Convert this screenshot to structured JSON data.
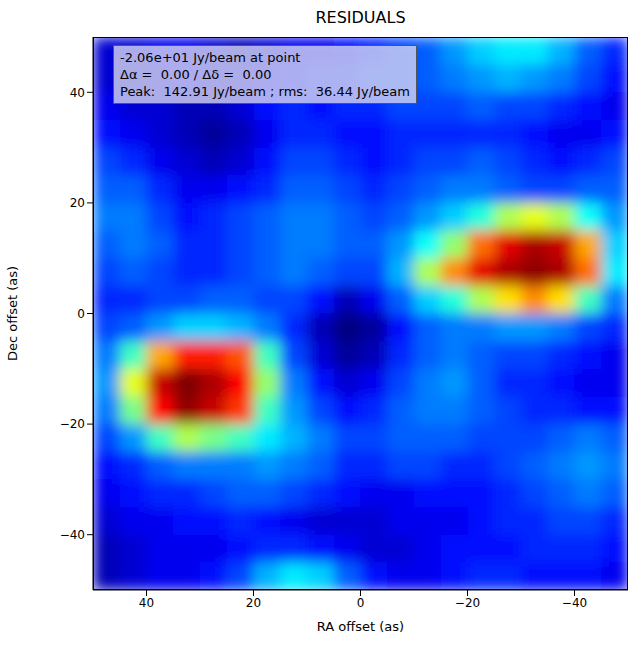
{
  "chart_data": {
    "type": "heatmap",
    "title": "RESIDUALS",
    "x_label": "RA offset (as)",
    "y_label": "Dec offset (as)",
    "annotation": [
      "-2.06e+01 Jy/beam at point",
      "Δα =  0.00 / Δδ =  0.00",
      "Peak:  142.91 Jy/beam ; rms:  36.44 Jy/beam"
    ],
    "xlim": [
      50,
      -50
    ],
    "ylim": [
      -50,
      50
    ],
    "xticks": [
      40,
      20,
      0,
      {
        "value": -20,
        "label": "−20"
      },
      {
        "value": -40,
        "label": "−40"
      }
    ],
    "yticks": [
      {
        "value": -40,
        "label": "−40"
      },
      {
        "value": -20,
        "label": "−20"
      },
      0,
      20,
      40
    ],
    "grid": false,
    "x": [
      47.5,
      42.5,
      37.5,
      32.5,
      27.5,
      22.5,
      17.5,
      12.5,
      7.5,
      2.5,
      -2.5,
      -7.5,
      -12.5,
      -17.5,
      -22.5,
      -27.5,
      -32.5,
      -37.5,
      -42.5,
      -47.5
    ],
    "y": [
      47.5,
      42.5,
      37.5,
      32.5,
      27.5,
      22.5,
      17.5,
      12.5,
      7.5,
      2.5,
      -2.5,
      -7.5,
      -12.5,
      -17.5,
      -22.5,
      -27.5,
      -32.5,
      -37.5,
      -42.5,
      -47.5
    ],
    "cells": [
      [
        -25,
        -25,
        -20,
        -20,
        -25,
        -30,
        -25,
        -20,
        -20,
        -15,
        -10,
        -5,
        0,
        10,
        20,
        25,
        25,
        15,
        0,
        -10
      ],
      [
        -25,
        -30,
        -25,
        -20,
        -25,
        -25,
        -20,
        -15,
        -10,
        -10,
        -5,
        -5,
        0,
        5,
        10,
        15,
        10,
        5,
        -5,
        -15
      ],
      [
        -20,
        -25,
        -25,
        -30,
        -30,
        -25,
        -15,
        -10,
        -15,
        -10,
        -10,
        -5,
        -5,
        -5,
        0,
        -5,
        -5,
        -10,
        -15,
        -20
      ],
      [
        -15,
        -20,
        -25,
        -30,
        -35,
        -30,
        -20,
        -10,
        -10,
        -15,
        -15,
        -10,
        -10,
        -10,
        -10,
        -10,
        -15,
        -20,
        -20,
        -15
      ],
      [
        -5,
        -10,
        -20,
        -25,
        -30,
        -25,
        -15,
        -5,
        -5,
        -10,
        -15,
        -10,
        -5,
        -5,
        0,
        -5,
        -10,
        -15,
        -10,
        -5
      ],
      [
        0,
        0,
        -10,
        -20,
        -20,
        -15,
        -10,
        0,
        0,
        -5,
        -10,
        -5,
        0,
        5,
        5,
        0,
        -5,
        -5,
        0,
        0
      ],
      [
        5,
        5,
        -5,
        -15,
        -10,
        -5,
        0,
        5,
        5,
        0,
        -5,
        0,
        10,
        20,
        35,
        60,
        70,
        60,
        30,
        10
      ],
      [
        0,
        5,
        0,
        -10,
        -10,
        -5,
        0,
        5,
        5,
        0,
        0,
        10,
        30,
        55,
        100,
        125,
        135,
        130,
        90,
        20
      ],
      [
        -5,
        0,
        -5,
        -10,
        -10,
        -5,
        0,
        5,
        0,
        -5,
        -5,
        15,
        60,
        95,
        125,
        135,
        140,
        135,
        100,
        25
      ],
      [
        -10,
        -10,
        -5,
        -5,
        0,
        0,
        -5,
        -5,
        -15,
        -30,
        -20,
        0,
        20,
        35,
        60,
        80,
        95,
        80,
        40,
        5
      ],
      [
        -5,
        0,
        10,
        20,
        20,
        15,
        5,
        -10,
        -30,
        -40,
        -35,
        -15,
        0,
        5,
        5,
        10,
        10,
        5,
        -5,
        -10
      ],
      [
        5,
        40,
        90,
        115,
        115,
        105,
        40,
        -5,
        -25,
        -35,
        -30,
        -10,
        0,
        5,
        0,
        -5,
        -5,
        -10,
        -15,
        -20
      ],
      [
        10,
        70,
        130,
        143,
        135,
        120,
        55,
        5,
        -15,
        -25,
        -20,
        -5,
        5,
        10,
        0,
        -10,
        -10,
        -15,
        -20,
        -20
      ],
      [
        5,
        50,
        120,
        140,
        130,
        110,
        40,
        10,
        -5,
        -15,
        -10,
        0,
        5,
        5,
        0,
        -5,
        -10,
        -10,
        -15,
        -15
      ],
      [
        -5,
        10,
        40,
        60,
        50,
        40,
        25,
        15,
        5,
        -5,
        -5,
        0,
        0,
        0,
        -5,
        -5,
        -5,
        0,
        5,
        0
      ],
      [
        -15,
        -10,
        0,
        5,
        5,
        5,
        10,
        5,
        0,
        -10,
        -10,
        -5,
        -5,
        -10,
        -10,
        -5,
        0,
        5,
        10,
        5
      ],
      [
        -20,
        -15,
        -10,
        -10,
        -5,
        0,
        0,
        -5,
        -10,
        -15,
        -20,
        -20,
        -15,
        -15,
        -15,
        -10,
        -5,
        0,
        5,
        0
      ],
      [
        -25,
        -20,
        -20,
        -15,
        -15,
        -10,
        -15,
        -20,
        -25,
        -25,
        -25,
        -20,
        -20,
        -20,
        -15,
        -10,
        -10,
        -5,
        -5,
        -10
      ],
      [
        -30,
        -25,
        -20,
        -20,
        -20,
        -15,
        -10,
        -10,
        -15,
        -20,
        -25,
        -25,
        -20,
        -15,
        -15,
        -15,
        -10,
        -10,
        -10,
        -15
      ],
      [
        -30,
        -25,
        -20,
        -20,
        -15,
        -5,
        15,
        25,
        20,
        0,
        -15,
        -20,
        -20,
        -15,
        -10,
        -10,
        -15,
        -15,
        -15,
        -20
      ]
    ]
  }
}
